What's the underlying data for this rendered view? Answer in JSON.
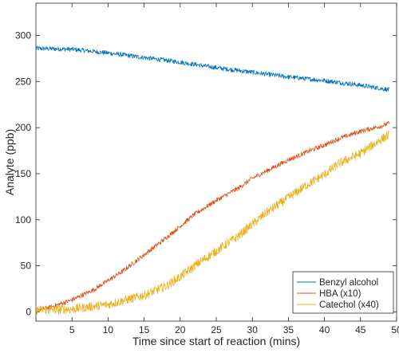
{
  "chart_data": {
    "type": "line",
    "title": "",
    "xlabel": "Time since start of reaction (mins)",
    "ylabel": "Analyte (ppb)",
    "xlim": [
      0,
      50
    ],
    "ylim": [
      -10,
      335
    ],
    "xticks": [
      5,
      10,
      15,
      20,
      25,
      30,
      35,
      40,
      45,
      50
    ],
    "yticks": [
      0,
      50,
      100,
      150,
      200,
      250,
      300
    ],
    "grid": false,
    "legend_position": "bottom-right",
    "series": [
      {
        "name": "Benzyl alcohol",
        "color": "#0072BD",
        "noise": 2.5,
        "x": [
          0,
          5,
          10,
          15,
          20,
          25,
          30,
          35,
          40,
          45,
          49
        ],
        "values": [
          286,
          285,
          281,
          276,
          271,
          265,
          260,
          255,
          251,
          246,
          241
        ]
      },
      {
        "name": "HBA (x10)",
        "color": "#D95319",
        "noise": 2.5,
        "x": [
          0,
          2,
          5,
          8,
          10,
          12,
          15,
          18,
          20,
          22,
          25,
          28,
          30,
          32,
          35,
          38,
          40,
          42,
          45,
          48,
          49
        ],
        "values": [
          2,
          5,
          13,
          24,
          34,
          44,
          62,
          80,
          93,
          106,
          121,
          134,
          145,
          153,
          165,
          175,
          181,
          188,
          196,
          202,
          205
        ]
      },
      {
        "name": "Catechol (x40)",
        "color": "#EDB120",
        "noise": 5,
        "x": [
          0,
          5,
          10,
          12,
          15,
          18,
          20,
          22,
          25,
          28,
          30,
          32,
          35,
          38,
          40,
          42,
          45,
          48,
          49
        ],
        "values": [
          2,
          3,
          8,
          12,
          18,
          28,
          38,
          50,
          66,
          82,
          95,
          108,
          124,
          140,
          149,
          161,
          172,
          188,
          192
        ]
      }
    ]
  }
}
